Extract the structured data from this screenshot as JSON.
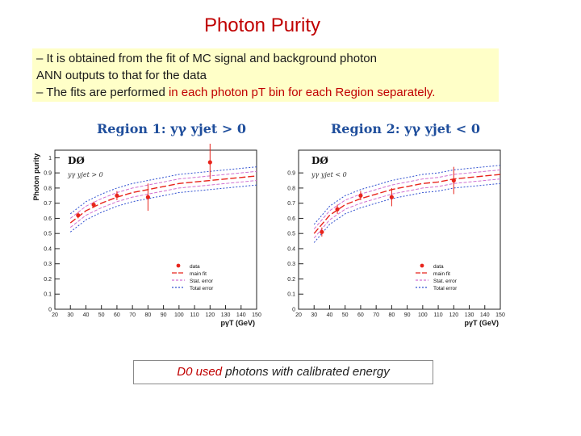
{
  "slide": {
    "title": "Photon Purity",
    "bullets": [
      {
        "parts": [
          {
            "text": "– It is obtained from the fit of MC signal and background photon",
            "hl": false
          }
        ]
      },
      {
        "parts": [
          {
            "text": "   ANN outputs to that for the data",
            "hl": false
          }
        ]
      },
      {
        "parts": [
          {
            "text": "– The fits are performed ",
            "hl": false
          },
          {
            "text": "in each photon pT bin for each Region separately.",
            "hl": true
          }
        ]
      }
    ],
    "note": {
      "highlight": "D0 used",
      "text": "  photons  with  calibrated energy"
    },
    "colors": {
      "title": "#c00000",
      "highlight": "#c00000",
      "box": "#ffffc8",
      "region_title": "#1f4e9c"
    }
  },
  "chart_data": [
    {
      "type": "line",
      "title": "Region 1:  yγ yjet > 0",
      "experiment_label": "DØ",
      "inset_label": "yγ yjet > 0",
      "xlabel": "pγT (GeV)",
      "ylabel": "Photon purity",
      "xlim": [
        20,
        150
      ],
      "ylim": [
        0,
        1.05
      ],
      "xticks": [
        20,
        30,
        40,
        50,
        60,
        70,
        80,
        90,
        100,
        110,
        120,
        130,
        140,
        150
      ],
      "yticks": [
        0,
        0.1,
        0.2,
        0.3,
        0.4,
        0.5,
        0.6,
        0.7,
        0.8,
        0.9,
        1
      ],
      "points": {
        "x": [
          35,
          45,
          60,
          80,
          120
        ],
        "y": [
          0.62,
          0.69,
          0.75,
          0.74,
          0.97
        ],
        "err_low": [
          0.02,
          0.02,
          0.03,
          0.09,
          0.11
        ],
        "err_high": [
          0.02,
          0.02,
          0.03,
          0.09,
          0.15
        ]
      },
      "fit": {
        "x": [
          30,
          40,
          50,
          60,
          70,
          80,
          90,
          100,
          110,
          120,
          130,
          140,
          150
        ],
        "y": [
          0.57,
          0.65,
          0.7,
          0.74,
          0.77,
          0.79,
          0.81,
          0.83,
          0.84,
          0.85,
          0.86,
          0.87,
          0.88
        ]
      },
      "stat_band": 0.03,
      "total_band": 0.06,
      "legend": [
        "data",
        "main fit",
        "Stat. error",
        "Total error"
      ],
      "legend_position": "bottom-right",
      "colors": {
        "data": "#e8241c",
        "fit": "#e8241c",
        "stat": "#d070d0",
        "total": "#3050d0"
      }
    },
    {
      "type": "line",
      "title": "Region 2:  yγ yjet < 0",
      "experiment_label": "DØ",
      "inset_label": "yγ yjet < 0",
      "xlabel": "pγT (GeV)",
      "ylabel": "",
      "xlim": [
        20,
        150
      ],
      "ylim": [
        0,
        1.05
      ],
      "xticks": [
        20,
        30,
        40,
        50,
        60,
        70,
        80,
        90,
        100,
        110,
        120,
        130,
        140,
        150
      ],
      "yticks": [
        0,
        0.1,
        0.2,
        0.3,
        0.4,
        0.5,
        0.6,
        0.7,
        0.8,
        0.9
      ],
      "points": {
        "x": [
          35,
          45,
          60,
          80,
          120
        ],
        "y": [
          0.51,
          0.66,
          0.75,
          0.74,
          0.85
        ],
        "err_low": [
          0.03,
          0.03,
          0.03,
          0.06,
          0.09
        ],
        "err_high": [
          0.03,
          0.03,
          0.03,
          0.06,
          0.09
        ]
      },
      "fit": {
        "x": [
          30,
          40,
          50,
          60,
          70,
          80,
          90,
          100,
          110,
          120,
          130,
          140,
          150
        ],
        "y": [
          0.5,
          0.62,
          0.69,
          0.73,
          0.76,
          0.79,
          0.81,
          0.83,
          0.84,
          0.86,
          0.87,
          0.88,
          0.89
        ]
      },
      "stat_band": 0.03,
      "total_band": 0.06,
      "legend": [
        "data",
        "main fit",
        "Stat. error",
        "Total error"
      ],
      "legend_position": "bottom-right",
      "colors": {
        "data": "#e8241c",
        "fit": "#e8241c",
        "stat": "#d070d0",
        "total": "#3050d0"
      }
    }
  ]
}
